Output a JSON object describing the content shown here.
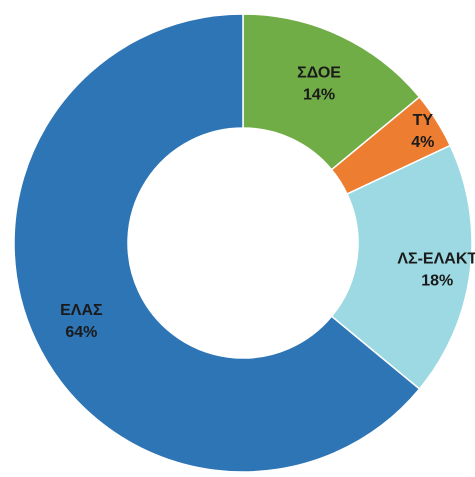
{
  "chart_data": {
    "type": "pie",
    "variant": "donut",
    "title": "",
    "categories": [
      "ΣΔΟΕ",
      "ΤΥ",
      "ΛΣ-ΕΛΑΚΤ",
      "ΕΛΑΣ"
    ],
    "values": [
      14,
      4,
      18,
      64
    ],
    "unit": "%",
    "value_labels": [
      "14%",
      "4%",
      "18%",
      "64%"
    ],
    "colors": [
      "#70AD47",
      "#ED7D31",
      "#9DD9E3",
      "#2E75B6"
    ],
    "legend": "none"
  }
}
